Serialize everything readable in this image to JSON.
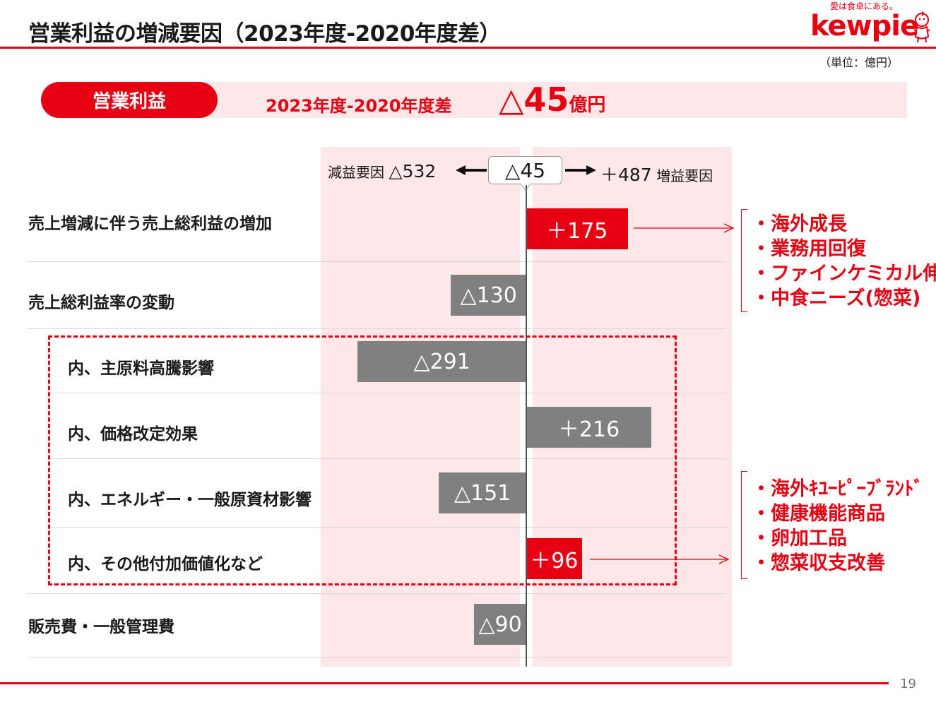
{
  "title": "営業利益の増減要因（2023年度-2020年度差）",
  "logo": {
    "tagline": "愛は食卓にある。",
    "name": "kewpie"
  },
  "unit_note": "（単位：億円）",
  "page_number": "19",
  "summary": {
    "pill_label": "営業利益",
    "diff_label": "2023年度-2020年度差",
    "diff_value": "△45",
    "diff_unit": "億円"
  },
  "header": {
    "negative_label": "減益要因",
    "negative_total": "△532",
    "total": "△45",
    "positive_total": "＋487",
    "positive_label": "増益要因"
  },
  "colors": {
    "accent": "#e60012",
    "neutral_bar": "#808080",
    "band": "#fde7e8"
  },
  "chart_data": {
    "type": "bar",
    "orientation": "horizontal",
    "categories": [
      "売上増減に伴う売上総利益の増加",
      "売上総利益率の変動",
      "内、主原料高騰影響",
      "内、価格改定効果",
      "内、エネルギー・一般原資材影響",
      "内、その他付加価値化など",
      "販売費・一般管理費"
    ],
    "values": [
      175,
      -130,
      -291,
      216,
      -151,
      96,
      -90
    ],
    "labels": [
      "＋175",
      "△130",
      "△291",
      "＋216",
      "△151",
      "＋96",
      "△90"
    ],
    "bar_colors": [
      "#e60012",
      "#808080",
      "#808080",
      "#808080",
      "#808080",
      "#e60012",
      "#808080"
    ],
    "total": -45,
    "negative_total": -532,
    "positive_total": 487
  },
  "factors_top": [
    "・海外成長",
    "・業務用回復",
    "・ファインケミカル伸長",
    "・中食ニーズ(惣菜)"
  ],
  "factors_bottom": [
    "・海外ｷﾕｰﾋﾟｰﾌﾞﾗﾝﾄﾞ",
    "・健康機能商品",
    "・卵加工品",
    "・惣菜収支改善"
  ]
}
